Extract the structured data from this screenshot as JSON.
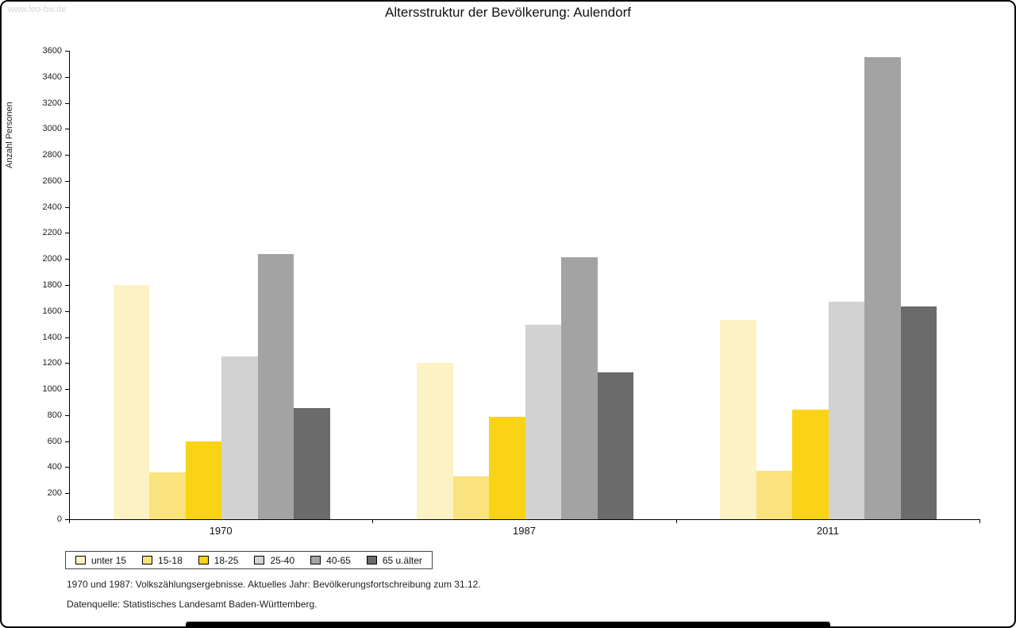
{
  "watermark": "www.leo-bw.de",
  "footer": {
    "line1": "1970 und 1987: Volkszählungsergebnisse. Aktuelles Jahr: Bevölkerungsfortschreibung zum 31.12.",
    "line2": "Datenquelle: Statistisches Landesamt Baden-Württemberg."
  },
  "chart_data": {
    "type": "bar",
    "title": "Altersstruktur der Bevölkerung: Aulendorf",
    "xlabel": "",
    "ylabel": "Anzahl Personen",
    "ylim": [
      0,
      3600
    ],
    "ytick_step": 200,
    "grid": false,
    "legend_position": "bottom",
    "categories": [
      "1970",
      "1987",
      "2011"
    ],
    "series": [
      {
        "name": "unter 15",
        "color": "#FDF2C4",
        "values": [
          1800,
          1200,
          1530
        ]
      },
      {
        "name": "15-18",
        "color": "#FAE27C",
        "values": [
          360,
          330,
          375
        ]
      },
      {
        "name": "18-25",
        "color": "#FBD316",
        "values": [
          600,
          790,
          840
        ]
      },
      {
        "name": "25-40",
        "color": "#D2D2D2",
        "values": [
          1250,
          1495,
          1670
        ]
      },
      {
        "name": "40-65",
        "color": "#A3A3A3",
        "values": [
          2040,
          2015,
          3550
        ]
      },
      {
        "name": "65 u.älter",
        "color": "#6B6B6B",
        "values": [
          855,
          1130,
          1635
        ]
      }
    ]
  }
}
